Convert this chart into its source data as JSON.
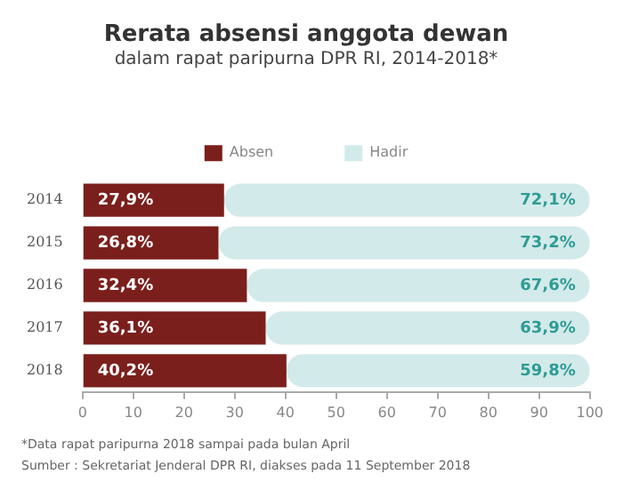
{
  "chart_data": {
    "type": "bar",
    "orientation": "horizontal",
    "stacked": true,
    "title": "Rerata absensi anggota dewan",
    "subtitle": "dalam rapat paripurna DPR RI, 2014-2018*",
    "categories": [
      "2014",
      "2015",
      "2016",
      "2017",
      "2018"
    ],
    "series": [
      {
        "name": "Absen",
        "color": "#7b1f1c",
        "values": [
          27.9,
          26.8,
          32.4,
          36.1,
          40.2
        ],
        "value_labels": [
          "27,9%",
          "26,8%",
          "32,4%",
          "36,1%",
          "40,2%"
        ]
      },
      {
        "name": "Hadir",
        "color": "#d3eaea",
        "values": [
          72.1,
          73.2,
          67.6,
          63.9,
          59.8
        ],
        "value_labels": [
          "72,1%",
          "73,2%",
          "67,6%",
          "63,9%",
          "59,8%"
        ]
      }
    ],
    "xlim": [
      0,
      100
    ],
    "xticks": [
      0,
      10,
      20,
      30,
      40,
      50,
      60,
      70,
      80,
      90,
      100
    ],
    "grid": false,
    "legend": "top",
    "annotations": [
      "*Data rapat paripurna 2018 sampai pada bulan April",
      "Sumber : Sekretariat Jenderal DPR RI, diakses pada 11 September 2018"
    ]
  }
}
